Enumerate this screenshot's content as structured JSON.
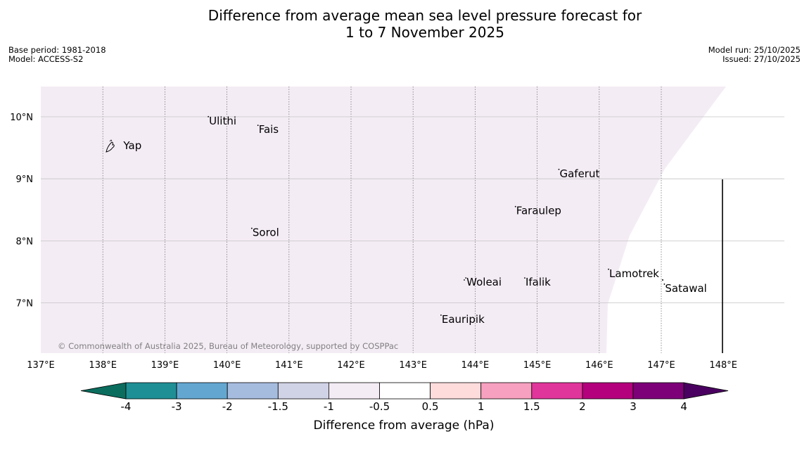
{
  "title": {
    "line1": "Difference from average mean sea level pressure forecast for",
    "line2": "1 to 7 November 2025"
  },
  "meta_left": {
    "base_period": "Base period: 1981-2018",
    "model": "Model: ACCESS-S2"
  },
  "meta_right": {
    "model_run": "Model run: 25/10/2025",
    "issued": "Issued: 27/10/2025"
  },
  "map": {
    "copyright": "© Commonwealth of Australia 2025, Bureau of Meteorology, supported by COSPPac",
    "lon_range": [
      137,
      149
    ],
    "lat_range": [
      6.2,
      10.5
    ],
    "anomaly_fill_color": "#f4ecf5",
    "lon_ticks": [
      {
        "value": 137,
        "label": "137°E"
      },
      {
        "value": 138,
        "label": "138°E"
      },
      {
        "value": 139,
        "label": "139°E"
      },
      {
        "value": 140,
        "label": "140°E"
      },
      {
        "value": 141,
        "label": "141°E"
      },
      {
        "value": 142,
        "label": "142°E"
      },
      {
        "value": 143,
        "label": "143°E"
      },
      {
        "value": 144,
        "label": "144°E"
      },
      {
        "value": 145,
        "label": "145°E"
      },
      {
        "value": 146,
        "label": "146°E"
      },
      {
        "value": 147,
        "label": "147°E"
      },
      {
        "value": 148,
        "label": "148°E"
      }
    ],
    "lat_ticks": [
      {
        "value": 10,
        "label": "10°N"
      },
      {
        "value": 9,
        "label": "9°N"
      },
      {
        "value": 8,
        "label": "8°N"
      },
      {
        "value": 7,
        "label": "7°N"
      }
    ],
    "islands": [
      {
        "name": "Yap",
        "lon": 138.15,
        "lat": 9.5
      },
      {
        "name": "Ulithi",
        "lon": 139.7,
        "lat": 9.9
      },
      {
        "name": "Fais",
        "lon": 140.5,
        "lat": 9.76
      },
      {
        "name": "Gaferut",
        "lon": 145.35,
        "lat": 9.05
      },
      {
        "name": "Faraulep",
        "lon": 144.65,
        "lat": 8.45
      },
      {
        "name": "Sorol",
        "lon": 140.4,
        "lat": 8.1
      },
      {
        "name": "Woleai",
        "lon": 143.85,
        "lat": 7.3
      },
      {
        "name": "Ifalik",
        "lon": 144.8,
        "lat": 7.3
      },
      {
        "name": "Lamotrek",
        "lon": 146.15,
        "lat": 7.44
      },
      {
        "name": "Satawal",
        "lon": 147.05,
        "lat": 7.2
      },
      {
        "name": "Eauripik",
        "lon": 143.45,
        "lat": 6.7
      }
    ]
  },
  "colorbar": {
    "label": "Difference from average (hPa)",
    "ticks": [
      "-4",
      "-3",
      "-2",
      "-1.5",
      "-1",
      "-0.5",
      "0.5",
      "1",
      "1.5",
      "2",
      "3",
      "4"
    ],
    "colors": [
      "#0b6d5e",
      "#1e8f95",
      "#63a7d1",
      "#a6bcdf",
      "#d0d2e6",
      "#f4ecf5",
      "#ffffff",
      "#ffdcdc",
      "#f7a0bf",
      "#e0359a",
      "#b4007c",
      "#7d0078",
      "#4a0060"
    ]
  }
}
